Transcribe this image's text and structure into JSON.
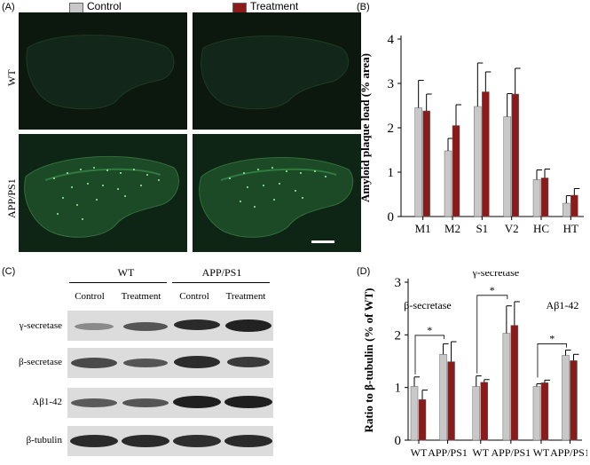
{
  "panels": {
    "a": "(A)",
    "b": "(B)",
    "c": "(C)",
    "d": "(D)"
  },
  "legend": {
    "control_label": "Control",
    "treatment_label": "Treatment",
    "control_color": "#c8c8c8",
    "treatment_color": "#8b1a1a"
  },
  "panel_a": {
    "row_wt": "WT",
    "row_app": "APP/PS1"
  },
  "panel_c": {
    "group_wt": "WT",
    "group_app": "APP/PS1",
    "columns": [
      "Control",
      "Treatment",
      "Control",
      "Treatment"
    ],
    "rows": [
      "γ-secretase",
      "β-secretase",
      "Aβ1-42",
      "β-tubulin"
    ]
  },
  "chart_data": [
    {
      "type": "bar",
      "panel": "B",
      "ylabel": "Amyloid plaque load (% area)",
      "xlabel": "",
      "ylim": [
        0,
        4
      ],
      "yticks": [
        0,
        1,
        2,
        3,
        4
      ],
      "categories": [
        "M1",
        "M2",
        "S1",
        "V2",
        "HC",
        "HT"
      ],
      "series": [
        {
          "name": "Control",
          "values": [
            2.45,
            1.48,
            2.48,
            2.25,
            0.83,
            0.3
          ],
          "errors": [
            0.62,
            0.28,
            0.98,
            0.52,
            0.22,
            0.17
          ]
        },
        {
          "name": "Treatment",
          "values": [
            2.38,
            2.05,
            2.81,
            2.76,
            0.87,
            0.48
          ],
          "errors": [
            0.38,
            0.47,
            0.45,
            0.58,
            0.2,
            0.15
          ]
        }
      ]
    },
    {
      "type": "bar",
      "panel": "D",
      "ylabel": "Ratio to β-tubulin (% of WT)",
      "xlabel": "",
      "ylim": [
        0,
        3
      ],
      "yticks": [
        0,
        1,
        2,
        3
      ],
      "group_titles": [
        "β-secretase",
        "γ-secretase",
        "Aβ1-42"
      ],
      "categories": [
        "WT",
        "APP/PS1",
        "WT",
        "APP/PS1",
        "WT",
        "APP/PS1"
      ],
      "series": [
        {
          "name": "Control",
          "values": [
            1.02,
            1.63,
            1.02,
            2.03,
            1.02,
            1.61
          ],
          "errors": [
            0.18,
            0.2,
            0.2,
            0.52,
            0.05,
            0.1
          ]
        },
        {
          "name": "Treatment",
          "values": [
            0.77,
            1.49,
            1.1,
            2.18,
            1.09,
            1.51
          ],
          "errors": [
            0.18,
            0.38,
            0.05,
            0.45,
            0.05,
            0.12
          ]
        }
      ],
      "significance": [
        "*",
        "*",
        "*"
      ]
    }
  ]
}
